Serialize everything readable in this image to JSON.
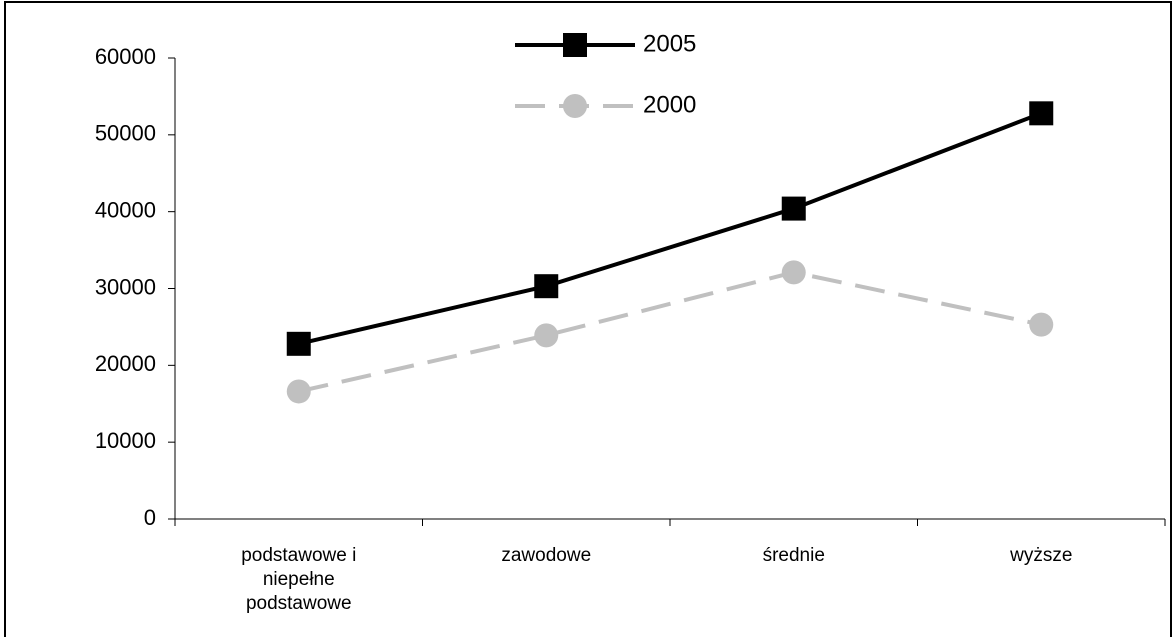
{
  "chart_data": {
    "type": "line",
    "categories": [
      "podstawowe i niepełne podstawowe",
      "zawodowe",
      "średnie",
      "wyższe"
    ],
    "series": [
      {
        "name": "2005",
        "color": "#000000",
        "marker": "square",
        "dash": false,
        "values": [
          22800,
          30300,
          40400,
          52800
        ]
      },
      {
        "name": "2000",
        "color": "#c0c0c0",
        "marker": "circle",
        "dash": true,
        "values": [
          16600,
          23900,
          32100,
          25300
        ]
      }
    ],
    "ylim": [
      0,
      60000
    ],
    "yticks": [
      0,
      10000,
      20000,
      30000,
      40000,
      50000,
      60000
    ],
    "grid": false
  }
}
